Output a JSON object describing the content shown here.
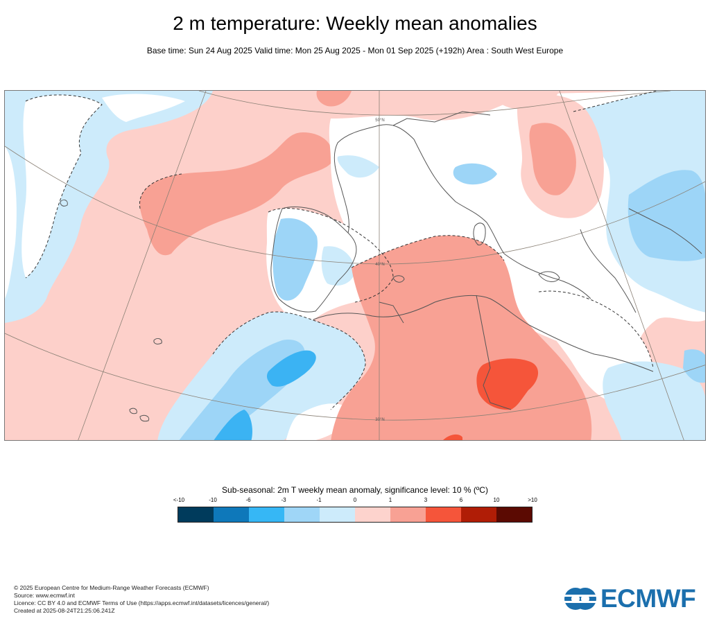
{
  "header": {
    "title": "2 m temperature: Weekly mean anomalies",
    "subtitle": "Base time: Sun 24 Aug 2025 Valid time: Mon 25 Aug 2025 - Mon 01 Sep 2025 (+192h) Area : South West Europe"
  },
  "map": {
    "grid_labels": [
      "50°N",
      "40°N",
      "30°N"
    ],
    "colors": {
      "neutral": "#ffffff",
      "lt_neg1": "#cdebfb",
      "neg1_neg3": "#9dd5f7",
      "neg3_neg6": "#3bb3f3",
      "pos0_1": "#fdd0ca",
      "pos1_3": "#f8a194",
      "pos3_6": "#f5553a",
      "coast": "#555555",
      "graticule": "#8a8075"
    }
  },
  "legend": {
    "title": "Sub-seasonal: 2m T weekly mean anomaly, significance level: 10 % (ºC)",
    "ticks": [
      "<-10",
      "-10",
      "-6",
      "-3",
      "-1",
      "0",
      "1",
      "3",
      "6",
      "10",
      ">10"
    ],
    "colors": [
      "#003b5c",
      "#0e78ba",
      "#36b7f5",
      "#9fd6f7",
      "#cdebfb",
      "#fdd3cd",
      "#f8a194",
      "#f5553a",
      "#b01d06",
      "#5b0a02"
    ]
  },
  "footer": {
    "line1": "© 2025 European Centre for Medium-Range Weather Forecasts (ECMWF)",
    "line2": "Source: www.ecmwf.int",
    "line3": "Licence: CC BY 4.0 and ECMWF Terms of Use (https://apps.ecmwf.int/datasets/licences/general/)",
    "line4": "Created at 2025-08-24T21:25:06.241Z"
  },
  "logo": {
    "text": "ECMWF"
  }
}
